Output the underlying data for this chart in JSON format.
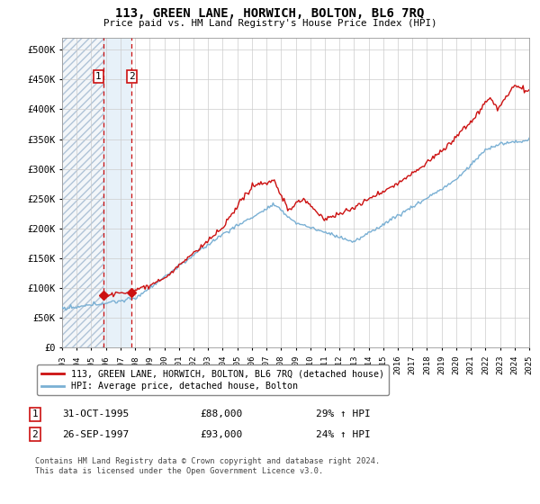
{
  "title": "113, GREEN LANE, HORWICH, BOLTON, BL6 7RQ",
  "subtitle": "Price paid vs. HM Land Registry's House Price Index (HPI)",
  "legend_line1": "113, GREEN LANE, HORWICH, BOLTON, BL6 7RQ (detached house)",
  "legend_line2": "HPI: Average price, detached house, Bolton",
  "footnote": "Contains HM Land Registry data © Crown copyright and database right 2024.\nThis data is licensed under the Open Government Licence v3.0.",
  "sale1_date": "31-OCT-1995",
  "sale1_price": 88000,
  "sale1_label": "1",
  "sale1_hpi": "29% ↑ HPI",
  "sale2_date": "26-SEP-1997",
  "sale2_price": 93000,
  "sale2_label": "2",
  "sale2_hpi": "24% ↑ HPI",
  "hpi_color": "#7ab0d4",
  "sale_color": "#cc1111",
  "marker_color": "#cc1111",
  "dashed_color": "#cc1111",
  "ylim_min": 0,
  "ylim_max": 520000,
  "yticks": [
    0,
    50000,
    100000,
    150000,
    200000,
    250000,
    300000,
    350000,
    400000,
    450000,
    500000
  ],
  "xlabel_start_year": 1993,
  "xlabel_end_year": 2025
}
